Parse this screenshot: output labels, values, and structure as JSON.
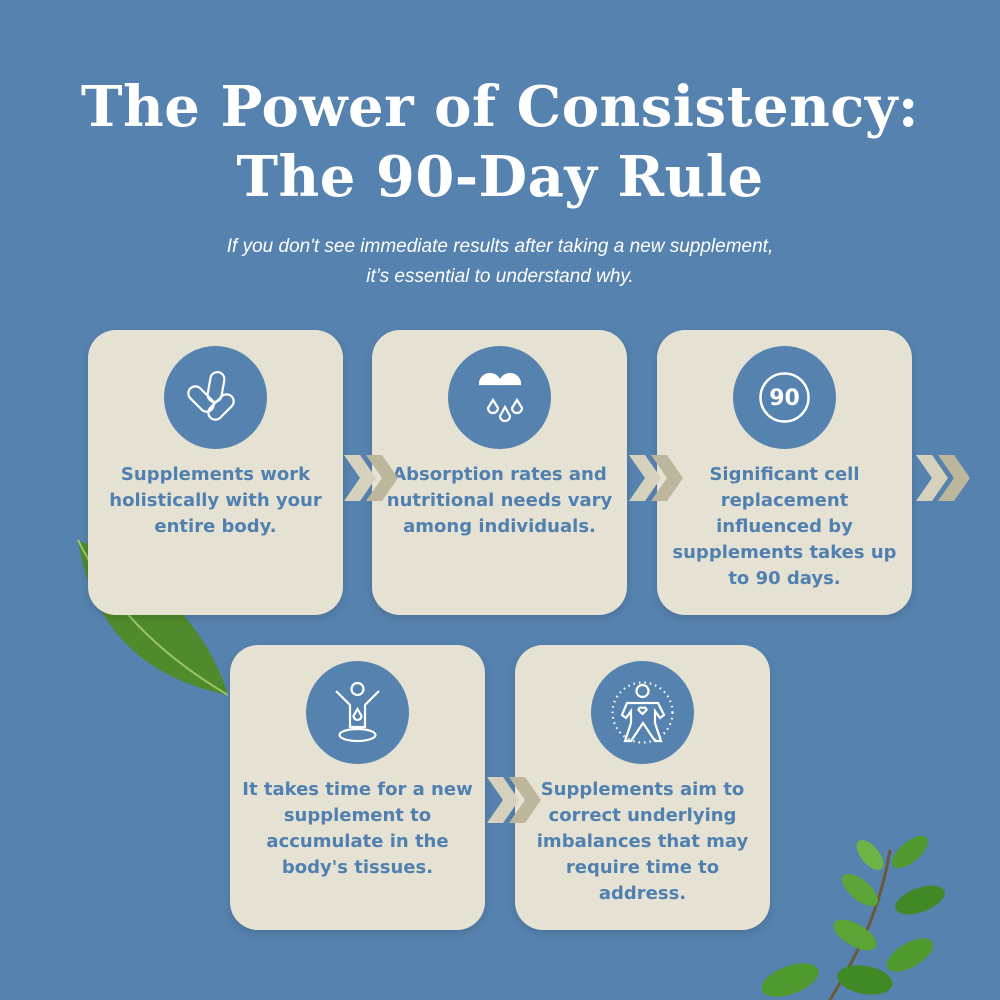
{
  "title": {
    "line1": "The Power of Consistency:",
    "line2": "The 90-Day Rule"
  },
  "subtitle": {
    "line1": "If you don't see immediate results after taking a new supplement,",
    "line2": "it’s essential to understand why."
  },
  "colors": {
    "background": "#5582ae",
    "card": "#e6e2d3",
    "card_text": "#5080b0",
    "arrow_light": "#d6d1bd",
    "arrow_dark": "#bcb69d"
  },
  "cards": [
    {
      "icon": "capsules-icon",
      "text": "Supplements work holistically with your entire body."
    },
    {
      "icon": "capsule-drops-icon",
      "text": "Absorption rates and nutritional needs vary among individuals."
    },
    {
      "icon": "ninety-badge-icon",
      "icon_label": "90",
      "text": "Significant cell replacement influenced by supplements takes up to 90 days."
    },
    {
      "icon": "body-absorption-icon",
      "text": "It takes time for a new supplement to accumulate in the body's tissues."
    },
    {
      "icon": "body-balance-icon",
      "text": "Supplements aim to correct underlying imbalances that may require time to address."
    }
  ]
}
